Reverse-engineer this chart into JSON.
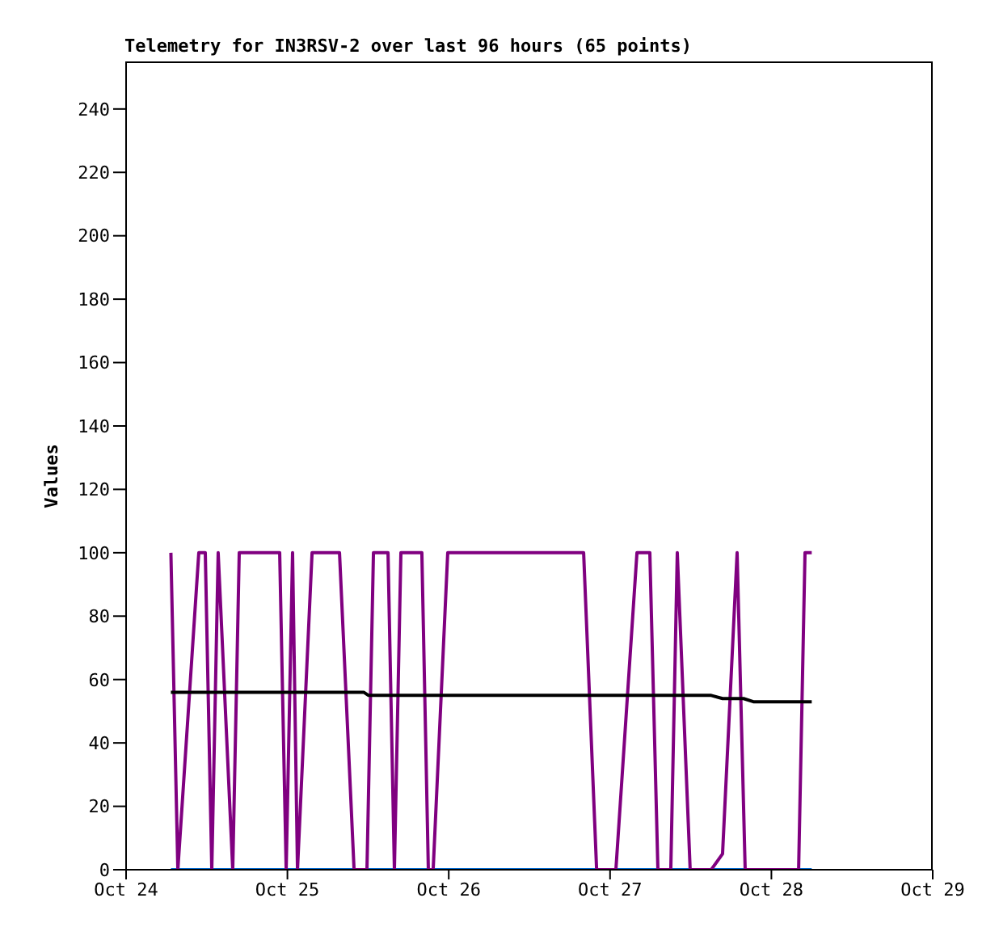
{
  "chart_data": {
    "type": "line",
    "title": "Telemetry for IN3RSV-2 over last 96 hours (65 points)",
    "ylabel": "Values",
    "xlim": [
      "--10-24",
      "--10-29"
    ],
    "xticks": [
      {
        "value": "--10-24",
        "label": "Oct 24"
      },
      {
        "value": "--10-25",
        "label": "Oct 25"
      },
      {
        "value": "--10-26",
        "label": "Oct 26"
      },
      {
        "value": "--10-27",
        "label": "Oct 27"
      },
      {
        "value": "--10-28",
        "label": "Oct 28"
      },
      {
        "value": "--10-29",
        "label": "Oct 29"
      }
    ],
    "ylim": [
      0,
      255
    ],
    "yticks": [
      0,
      20,
      40,
      60,
      80,
      100,
      120,
      140,
      160,
      180,
      200,
      220,
      240
    ],
    "grid": false,
    "marker": "none",
    "line_style": "solid",
    "series": [
      {
        "color": "#0066cc",
        "x": [
          "--10-24T06:40",
          "--10-28T06:00"
        ],
        "values": [
          0,
          0
        ]
      },
      {
        "color": "#800080",
        "x": [
          "--10-24T06:40",
          "--10-24T07:42",
          "--10-24T10:49",
          "--10-24T11:47",
          "--10-24T12:45",
          "--10-24T13:42",
          "--10-24T15:52",
          "--10-24T16:50",
          "--10-24T22:51",
          "--10-24T23:49",
          "--10-25T00:46",
          "--10-25T01:30",
          "--10-25T03:40",
          "--10-25T07:45",
          "--10-25T09:55",
          "--10-25T11:50",
          "--10-25T12:48",
          "--10-25T14:58",
          "--10-25T15:55",
          "--10-25T16:53",
          "--10-25T20:00",
          "--10-25T20:58",
          "--10-25T21:41",
          "--10-25T23:51",
          "--10-26T20:04",
          "--10-26T22:00",
          "--10-27T00:52",
          "--10-27T04:00",
          "--10-27T05:55",
          "--10-27T07:07",
          "--10-27T09:02",
          "--10-27T10:00",
          "--10-27T11:55",
          "--10-27T15:03",
          "--10-27T16:44",
          "--10-27T18:54",
          "--10-27T20:06",
          "--10-28T04:03",
          "--10-28T05:00",
          "--10-28T06:00"
        ],
        "values": [
          100,
          0,
          100,
          100,
          0,
          100,
          0,
          100,
          100,
          0,
          100,
          0,
          100,
          100,
          0,
          0,
          100,
          100,
          0,
          100,
          100,
          0,
          0,
          100,
          100,
          0,
          0,
          100,
          100,
          0,
          0,
          100,
          0,
          0,
          5,
          100,
          0,
          0,
          100,
          100
        ]
      },
      {
        "color": "#000000",
        "x": [
          "--10-24T06:40",
          "--10-25T11:21",
          "--10-25T12:04",
          "--10-27T15:03",
          "--10-27T16:44",
          "--10-27T19:52",
          "--10-27T21:19",
          "--10-28T06:00"
        ],
        "values": [
          56,
          56,
          55,
          55,
          54,
          54,
          53,
          53
        ]
      }
    ]
  }
}
